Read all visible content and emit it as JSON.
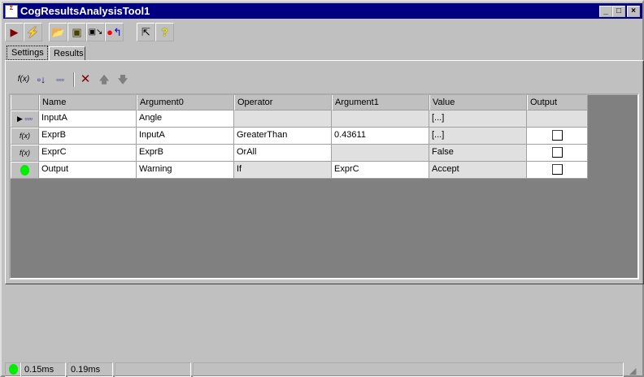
{
  "window": {
    "title": "CogResultsAnalysisTool1",
    "minimize": "_",
    "maximize": "□",
    "close": "×"
  },
  "toolbar": {
    "buttons": [
      "run-icon",
      "run-continuous-icon",
      "open-icon",
      "save-icon",
      "save-as-icon",
      "reset-icon",
      "select-tool-icon",
      "help-icon"
    ]
  },
  "tabs": [
    {
      "label": "Settings",
      "active": true
    },
    {
      "label": "Results",
      "active": false
    }
  ],
  "settings_toolbar": {
    "buttons": [
      "add-expression-icon",
      "add-input-icon",
      "add-input-array-icon",
      "delete-icon",
      "move-up-icon",
      "move-down-icon"
    ]
  },
  "grid": {
    "columns": [
      "Name",
      "Argument0",
      "Operator",
      "Argument1",
      "Value",
      "Output"
    ],
    "rows": [
      {
        "icon": "input-array-icon",
        "selected": true,
        "name": "InputA",
        "arg0": "Angle",
        "operator": "",
        "arg1": "",
        "value": "[...]",
        "output": null
      },
      {
        "icon": "f(x)",
        "name": "ExprB",
        "arg0": "InputA",
        "operator": "GreaterThan",
        "arg1": "0.43611",
        "value": "[...]",
        "output": false
      },
      {
        "icon": "f(x)",
        "name": "ExprC",
        "arg0": "ExprB",
        "operator": "OrAll",
        "arg1": "",
        "value": "False",
        "output": false
      },
      {
        "icon": "green-status-icon",
        "name": "Output",
        "arg0": "Warning",
        "operator": "If",
        "arg1": "ExprC",
        "value": "Accept",
        "output": false
      }
    ]
  },
  "status": {
    "indicator_color": "#00ee00",
    "time1": "0.15ms",
    "time2": "0.19ms"
  }
}
